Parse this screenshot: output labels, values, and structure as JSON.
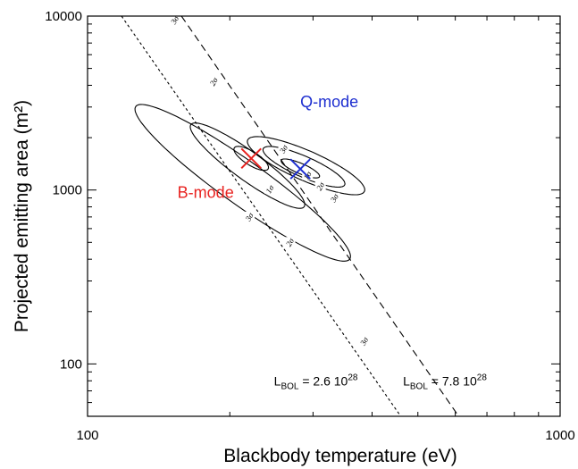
{
  "chart_data": {
    "type": "scatter",
    "xlabel": "Blackbody   temperature  (eV)",
    "ylabel": "Projected emitting area  (m²)",
    "x_scale": "log",
    "y_scale": "log",
    "xlim": [
      100,
      1000
    ],
    "ylim": [
      50,
      10000
    ],
    "x_ticks": [
      {
        "value": 100,
        "label": "100"
      },
      {
        "value": 1000,
        "label": "1000"
      }
    ],
    "y_ticks": [
      {
        "value": 100,
        "label": "100"
      },
      {
        "value": 1000,
        "label": "1000"
      },
      {
        "value": 10000,
        "label": "10000"
      }
    ],
    "grid": false,
    "modes": [
      {
        "label": "B-mode",
        "color": "#e8221f",
        "best_fit": {
          "x": 222,
          "y": 1520
        },
        "label_at": {
          "x": 155,
          "y": 900
        },
        "contours": [
          {
            "level": "1σ",
            "label": "1σ",
            "center": [
              222,
              1520
            ],
            "a": 0.075,
            "b": 0.022,
            "angle_deg": -66,
            "label_pos": {
              "x": 243,
              "y": 1010
            }
          },
          {
            "level": "2σ",
            "label": "2σ",
            "center": [
              218,
              1380
            ],
            "a": 0.27,
            "b": 0.045,
            "angle_deg": -65,
            "label_pos": {
              "x": 185,
              "y": 4200
            }
          },
          {
            "level": "2σ",
            "label": "2σ",
            "center": [
              218,
              1380
            ],
            "a": 0.27,
            "b": 0.045,
            "angle_deg": -65,
            "label_pos": {
              "x": 268,
              "y": 500
            }
          },
          {
            "level": "3σ",
            "label": "3σ",
            "center": [
              213,
              1100
            ],
            "a": 0.5,
            "b": 0.07,
            "angle_deg": -64,
            "label_pos": {
              "x": 153,
              "y": 9500
            }
          },
          {
            "level": "3σ",
            "label": "3σ",
            "center": [
              213,
              1100
            ],
            "a": 0.5,
            "b": 0.07,
            "angle_deg": -64,
            "label_pos": {
              "x": 220,
              "y": 700
            }
          },
          {
            "level": "3σ",
            "label": "3σ",
            "center": [
              213,
              1100
            ],
            "a": 0.5,
            "b": 0.07,
            "angle_deg": -64,
            "label_pos": {
              "x": 385,
              "y": 135
            }
          }
        ]
      },
      {
        "label": "Q-mode",
        "color": "#1e2fd0",
        "best_fit": {
          "x": 282,
          "y": 1320
        },
        "label_at": {
          "x": 282,
          "y": 3000
        },
        "contours": [
          {
            "level": "1σ",
            "label": "1σ",
            "center": [
              282,
              1330
            ],
            "a": 0.065,
            "b": 0.02,
            "angle_deg": -55,
            "label_pos": {
              "x": 292,
              "y": 1210
            }
          },
          {
            "level": "2σ",
            "label": "2σ",
            "center": [
              287,
              1360
            ],
            "a": 0.14,
            "b": 0.04,
            "angle_deg": -55,
            "label_pos": {
              "x": 311,
              "y": 1050
            }
          },
          {
            "level": "3σ",
            "label": "3σ",
            "center": [
              290,
              1380
            ],
            "a": 0.2,
            "b": 0.058,
            "angle_deg": -55,
            "label_pos": {
              "x": 260,
              "y": 1720
            }
          },
          {
            "level": "3σ",
            "label": "3σ",
            "center": [
              290,
              1380
            ],
            "a": 0.2,
            "b": 0.058,
            "angle_deg": -55,
            "label_pos": {
              "x": 333,
              "y": 900
            }
          }
        ]
      }
    ],
    "luminosity_lines": [
      {
        "label_main": "L",
        "label_sub": "BOL",
        "label_rest": " = 2.6 10",
        "label_sup": "28",
        "dash": "short",
        "points": [
          [
            118,
            10000
          ],
          [
            460,
            50
          ]
        ],
        "label_at": {
          "x": 248,
          "y": 75
        }
      },
      {
        "label_main": "L",
        "label_sub": "BOL",
        "label_rest": " = 7.8 10",
        "label_sup": "28",
        "dash": "long",
        "points": [
          [
            158,
            10000
          ],
          [
            610,
            50
          ]
        ],
        "label_at": {
          "x": 465,
          "y": 75
        }
      }
    ]
  }
}
